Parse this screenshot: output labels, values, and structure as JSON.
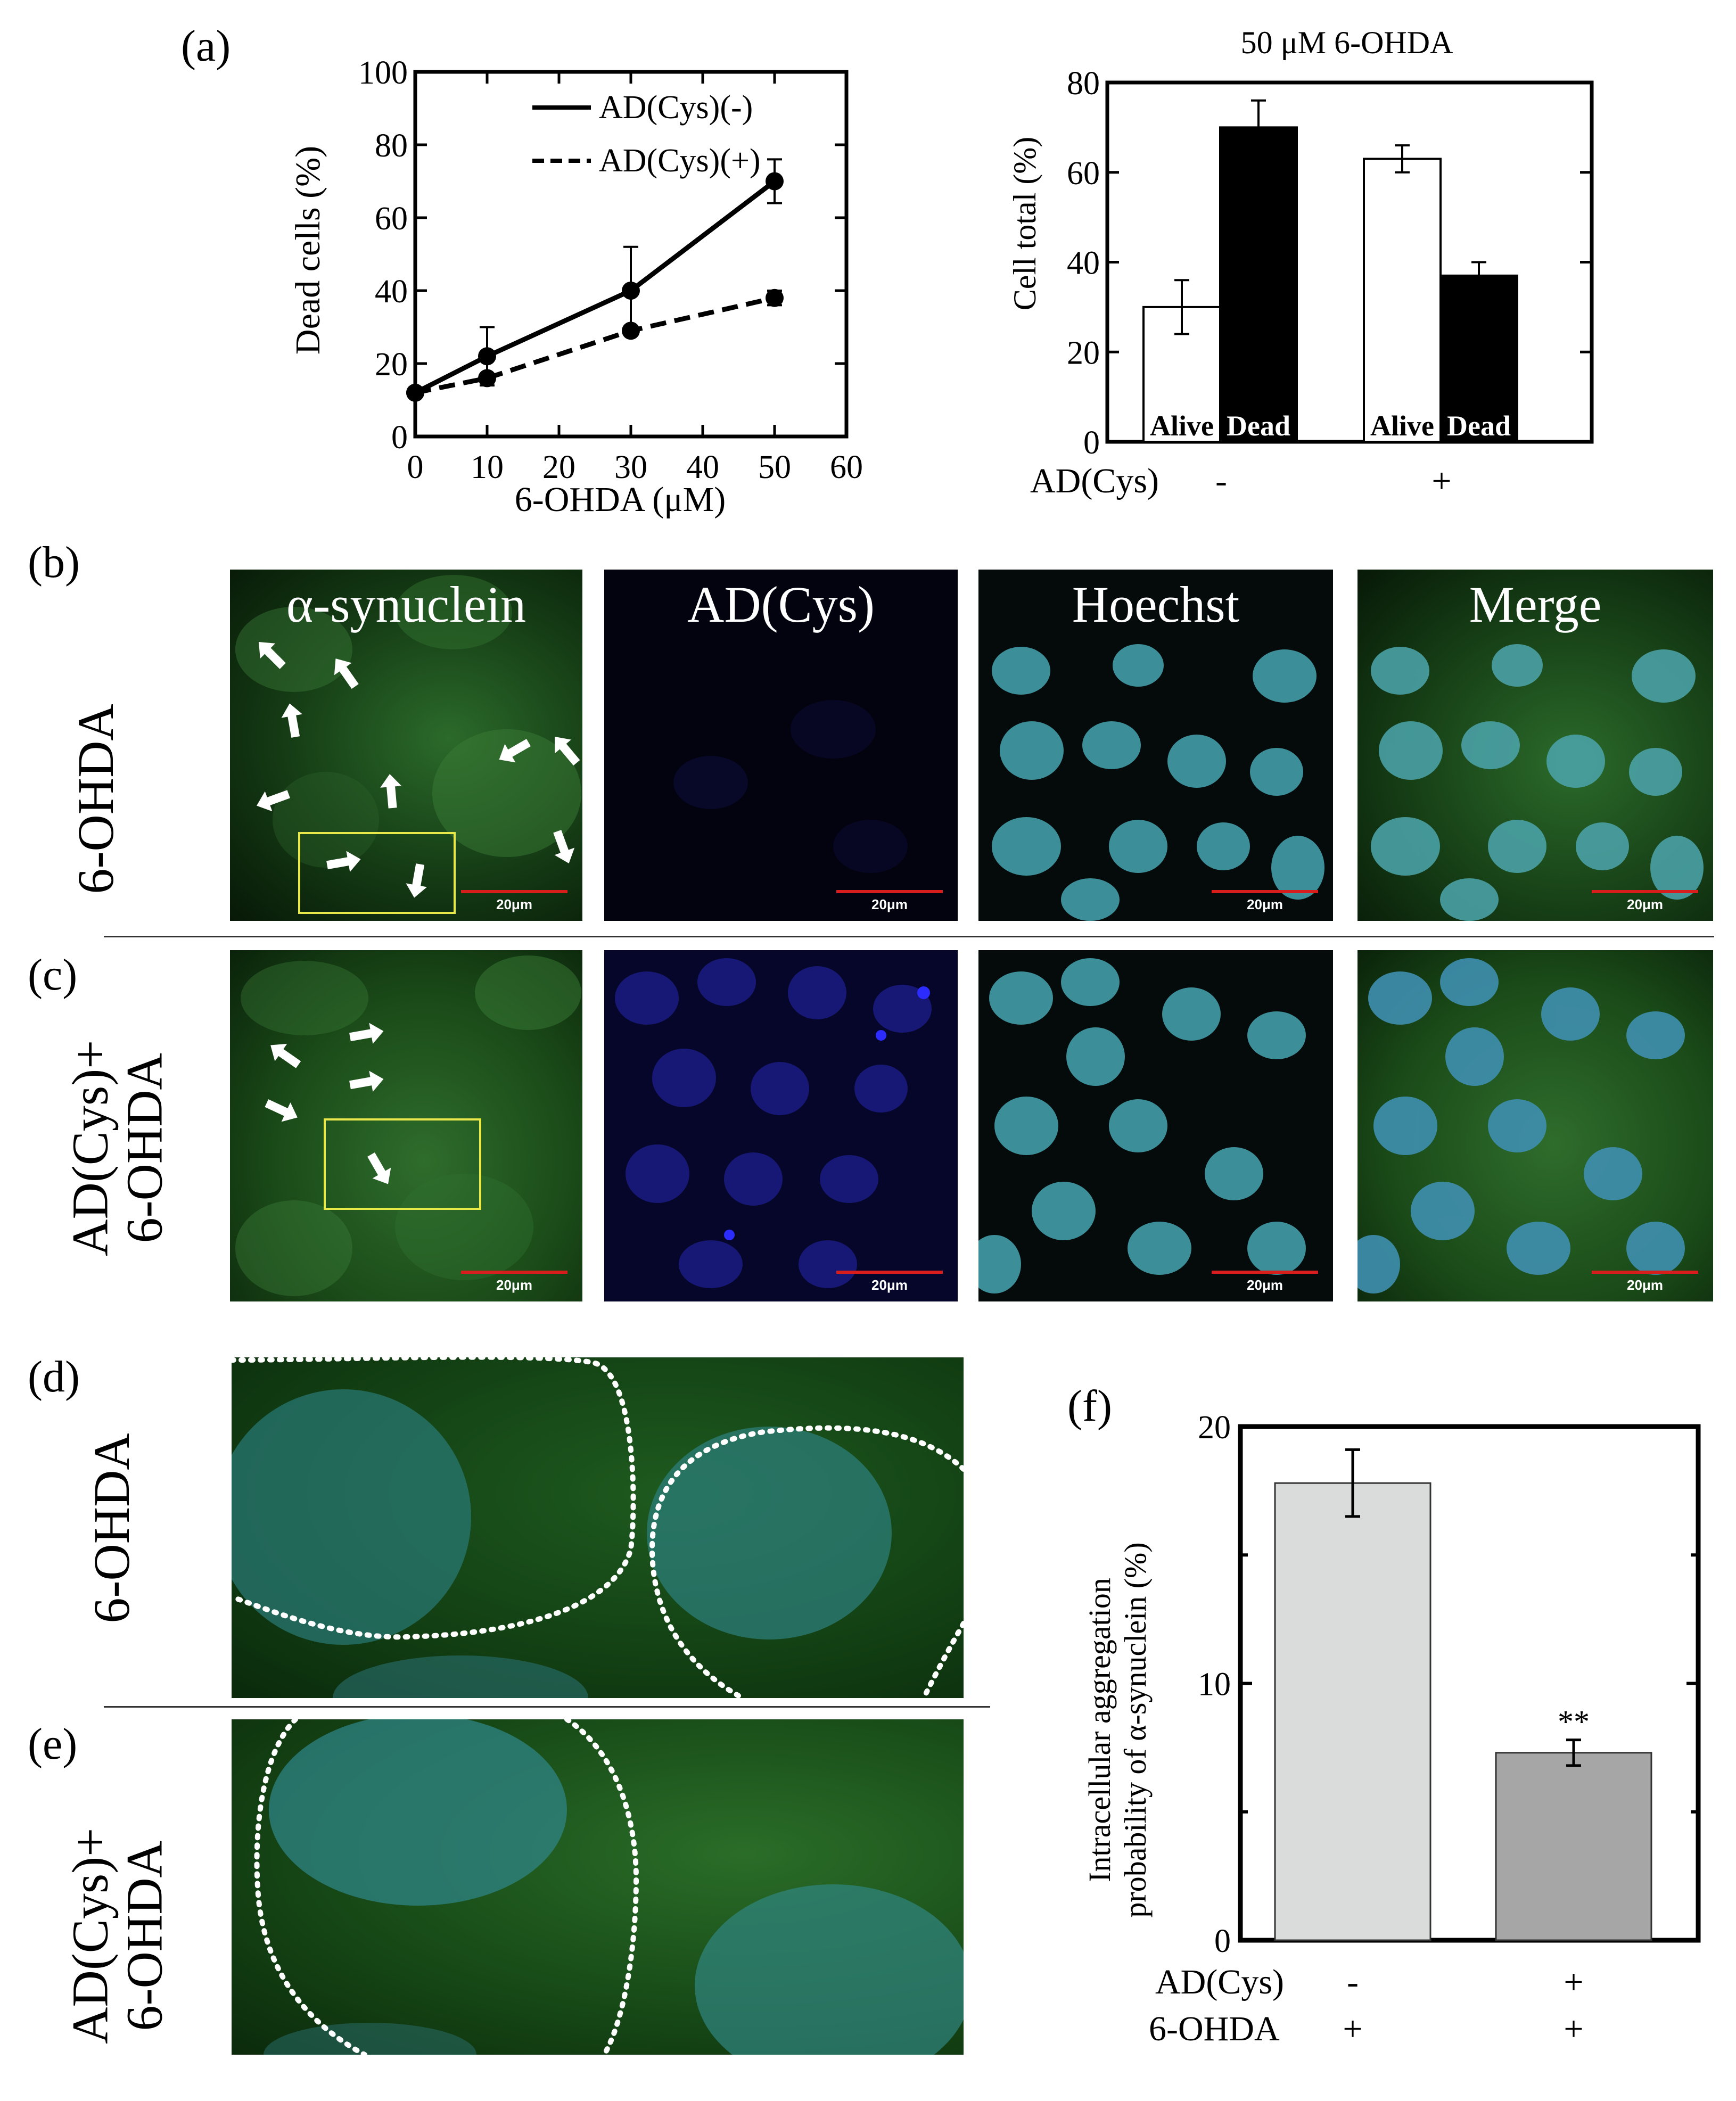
{
  "panel_labels": {
    "a": "(a)",
    "b": "(b)",
    "c": "(c)",
    "d": "(d)",
    "e": "(e)",
    "f": "(f)"
  },
  "micro_titles": [
    "α-synuclein",
    "AD(Cys)",
    "Hoechst",
    "Merge"
  ],
  "scale_label": "20μm",
  "row_labels": {
    "b": "6-OHDA",
    "c_line1": "AD(Cys)+",
    "c_line2": "6-OHDA",
    "d": "6-OHDA",
    "e_line1": "AD(Cys)+",
    "e_line2": "6-OHDA"
  },
  "colors": {
    "alpha_green": "#1f5a1f",
    "blue_dye": "#1d1f8f",
    "hoechst_cyan": "#5fc6cf",
    "marker_box": "#e8e84a",
    "scale_red": "#d81d1d"
  },
  "icons": [
    "arrow-icon",
    "region-box"
  ],
  "chart_data": [
    {
      "id": "a1",
      "type": "line",
      "xlabel": "6-OHDA (μM)",
      "ylabel": "Dead cells (%)",
      "xlim": [
        0,
        60
      ],
      "ylim": [
        0,
        100
      ],
      "xticks": [
        0,
        10,
        20,
        30,
        40,
        50,
        60
      ],
      "yticks": [
        0,
        20,
        40,
        60,
        80,
        100
      ],
      "x": [
        0,
        10,
        30,
        50
      ],
      "series": [
        {
          "name": "AD(Cys)(-)",
          "style": "solid",
          "values": [
            12,
            22,
            40,
            70
          ],
          "errors": [
            1,
            8,
            12,
            6
          ]
        },
        {
          "name": "AD(Cys)(+)",
          "style": "dashed",
          "values": [
            12,
            16,
            29,
            38
          ],
          "errors": [
            1,
            1,
            1,
            2
          ]
        }
      ],
      "legend_position": "top-right"
    },
    {
      "id": "a2",
      "type": "bar",
      "title": "50 μM 6-OHDA",
      "ylabel": "Cell total (%)",
      "ylim": [
        0,
        80
      ],
      "yticks": [
        0,
        20,
        40,
        60,
        80
      ],
      "group_label": "AD(Cys)",
      "groups": [
        {
          "label": "-",
          "bars": [
            {
              "name": "Alive",
              "value": 30,
              "error": 6,
              "fill": "white"
            },
            {
              "name": "Dead",
              "value": 70,
              "error": 6,
              "fill": "black"
            }
          ]
        },
        {
          "label": "+",
          "bars": [
            {
              "name": "Alive",
              "value": 63,
              "error": 3,
              "fill": "white"
            },
            {
              "name": "Dead",
              "value": 37,
              "error": 3,
              "fill": "black"
            }
          ]
        }
      ]
    },
    {
      "id": "f",
      "type": "bar",
      "ylabel_line1": "Intracellular aggregation",
      "ylabel_line2": "probability of α-synuclein (%)",
      "ylim": [
        0,
        20
      ],
      "yticks": [
        0,
        10,
        20
      ],
      "row_labels": [
        "AD(Cys)",
        "6-OHDA"
      ],
      "categories": [
        {
          "adcys": "-",
          "ohda": "+"
        },
        {
          "adcys": "+",
          "ohda": "+"
        }
      ],
      "values": [
        17.8,
        7.3
      ],
      "errors": [
        1.3,
        0.5
      ],
      "annotation": "**",
      "bar_colors": [
        "#dadcdb",
        "#a6a6a6"
      ]
    }
  ]
}
